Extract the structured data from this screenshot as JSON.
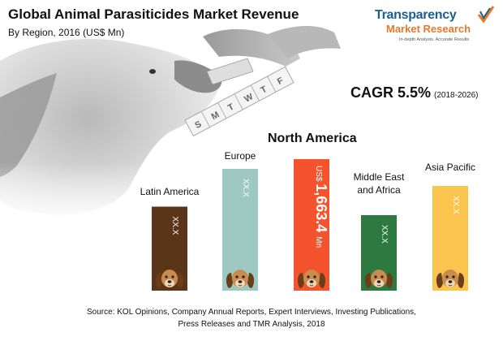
{
  "chart_data": {
    "type": "bar",
    "title": "Global Animal Parasiticides Market Revenue",
    "subtitle": "By Region, 2016 (US$ Mn)",
    "categories": [
      "Latin America",
      "Europe",
      "North America",
      "Middle East and Africa",
      "Asia Pacific"
    ],
    "value_labels": [
      "XX.X",
      "XX.X",
      "US$ 1,663.4 Mn",
      "XX.X",
      "XX.X"
    ],
    "highlight": {
      "label": "North America",
      "value": 1663.4
    },
    "relative_heights": [
      0.69,
      1.0,
      1.08,
      0.62,
      0.86
    ],
    "ylabel": "",
    "xlabel": "",
    "grid": false,
    "legend": "none",
    "colors": [
      "#5a3518",
      "#9ec9c2",
      "#f4532e",
      "#2c7a3f",
      "#fbc44c"
    ]
  },
  "cagr": {
    "label": "CAGR 5.5%",
    "period": "(2018-2026)"
  },
  "logo": {
    "line1": "Transparency",
    "line2": "Market Research",
    "tagline": "In-depth Analysis. Accurate Results"
  },
  "source": {
    "line1": "Source: KOL Opinions, Company Annual Reports, Expert Interviews, Investing Publications,",
    "line2": "Press Releases and TMR Analysis, 2018"
  },
  "decor": {
    "pill_box_letters": [
      "S",
      "M",
      "T",
      "W",
      "T",
      "F"
    ],
    "icon": "dog-face-icon",
    "photo": "dog-eating-pill-photo"
  }
}
